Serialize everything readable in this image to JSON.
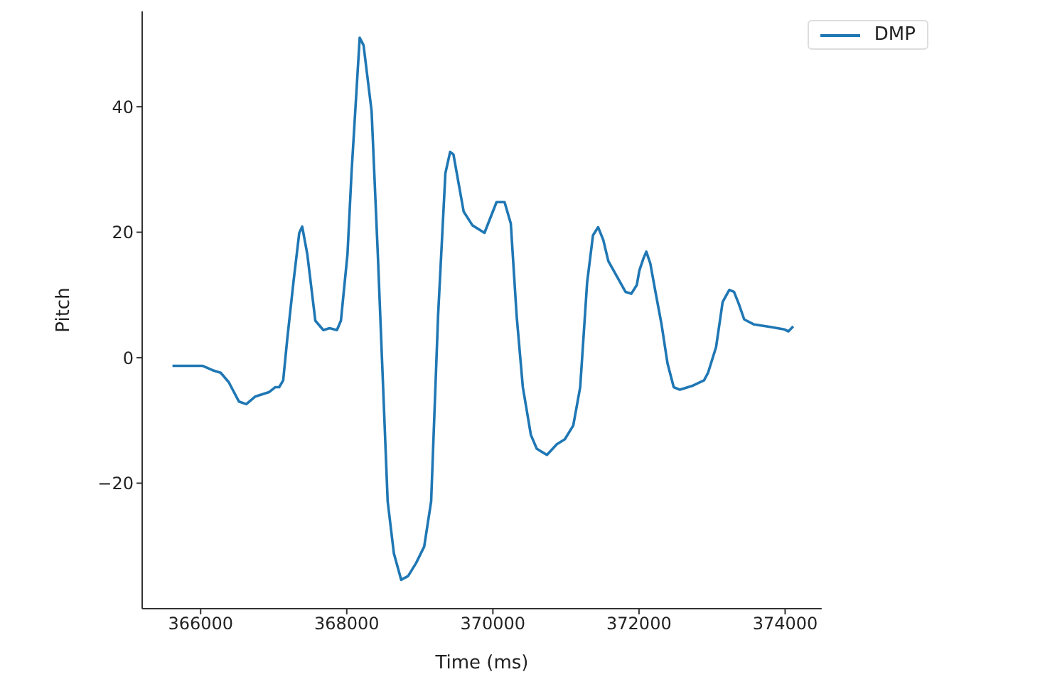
{
  "chart_data": {
    "type": "line",
    "xlabel": "Time (ms)",
    "ylabel": "Pitch",
    "xlim": [
      365200,
      374500
    ],
    "ylim": [
      -40,
      55.2
    ],
    "xticks": [
      366000,
      368000,
      370000,
      372000,
      374000
    ],
    "yticks": [
      {
        "value": -20,
        "label": "−20"
      },
      0,
      20,
      40
    ],
    "legend": "top right",
    "grid": false,
    "series": [
      {
        "name": "DMP",
        "color": "#1f77b4",
        "x": [
          365615,
          366030,
          366165,
          366275,
          366385,
          366525,
          366625,
          366745,
          366935,
          367020,
          367075,
          367130,
          367185,
          367270,
          367350,
          367390,
          367460,
          367570,
          367680,
          367765,
          367865,
          367920,
          368010,
          368065,
          368177,
          368230,
          368340,
          368425,
          368560,
          368645,
          368745,
          368840,
          368950,
          369060,
          369155,
          369250,
          369350,
          369415,
          369460,
          369600,
          369720,
          369885,
          370050,
          370160,
          370245,
          370325,
          370410,
          370520,
          370600,
          370740,
          370875,
          370985,
          371100,
          371195,
          371290,
          371370,
          371440,
          371510,
          371580,
          371705,
          371815,
          371895,
          371970,
          372005,
          372060,
          372100,
          372155,
          372225,
          372310,
          372390,
          372475,
          372560,
          372725,
          372890,
          372945,
          373055,
          373145,
          373235,
          373300,
          373365,
          373440,
          373575,
          373795,
          373990,
          374045,
          374110
        ],
        "values": [
          -1.3,
          -1.3,
          -2.0,
          -2.4,
          -3.9,
          -7.0,
          -7.4,
          -6.2,
          -5.5,
          -4.7,
          -4.7,
          -3.6,
          2.9,
          12.0,
          19.9,
          20.9,
          16.5,
          5.9,
          4.4,
          4.7,
          4.4,
          5.9,
          16.5,
          29.4,
          51.0,
          49.8,
          39.3,
          16.5,
          -22.9,
          -31.2,
          -35.4,
          -34.8,
          -32.7,
          -30.1,
          -22.9,
          6.7,
          29.4,
          32.8,
          32.4,
          23.3,
          21.1,
          19.9,
          24.8,
          24.8,
          21.4,
          6.7,
          -4.7,
          -12.3,
          -14.5,
          -15.5,
          -13.8,
          -13.0,
          -10.8,
          -4.7,
          12.0,
          19.5,
          20.8,
          18.8,
          15.4,
          12.8,
          10.5,
          10.2,
          11.6,
          13.9,
          15.8,
          16.9,
          15.0,
          10.5,
          5.2,
          -0.9,
          -4.7,
          -5.1,
          -4.5,
          -3.6,
          -2.4,
          1.7,
          8.9,
          10.8,
          10.5,
          8.6,
          6.1,
          5.3,
          4.9,
          4.5,
          4.2,
          5.0
        ]
      }
    ]
  }
}
